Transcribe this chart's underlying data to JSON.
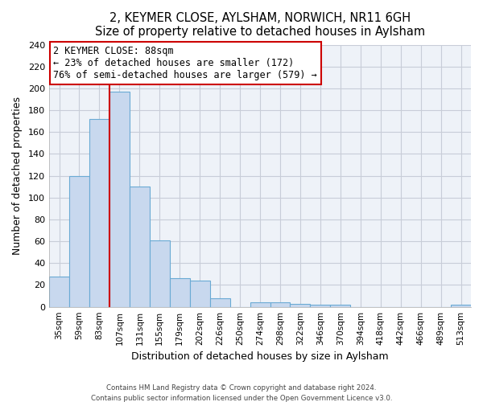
{
  "title": "2, KEYMER CLOSE, AYLSHAM, NORWICH, NR11 6GH",
  "subtitle": "Size of property relative to detached houses in Aylsham",
  "xlabel": "Distribution of detached houses by size in Aylsham",
  "ylabel": "Number of detached properties",
  "bar_color": "#c8d8ee",
  "bar_edge_color": "#6aaad4",
  "plot_bg_color": "#eef2f8",
  "categories": [
    "35sqm",
    "59sqm",
    "83sqm",
    "107sqm",
    "131sqm",
    "155sqm",
    "179sqm",
    "202sqm",
    "226sqm",
    "250sqm",
    "274sqm",
    "298sqm",
    "322sqm",
    "346sqm",
    "370sqm",
    "394sqm",
    "418sqm",
    "442sqm",
    "466sqm",
    "489sqm",
    "513sqm"
  ],
  "values": [
    28,
    120,
    172,
    197,
    110,
    61,
    26,
    24,
    8,
    0,
    4,
    4,
    3,
    2,
    2,
    0,
    0,
    0,
    0,
    0,
    2
  ],
  "ylim": [
    0,
    240
  ],
  "yticks": [
    0,
    20,
    40,
    60,
    80,
    100,
    120,
    140,
    160,
    180,
    200,
    220,
    240
  ],
  "vline_color": "#cc0000",
  "vline_position": 2.5,
  "annotation_title": "2 KEYMER CLOSE: 88sqm",
  "annotation_line1": "← 23% of detached houses are smaller (172)",
  "annotation_line2": "76% of semi-detached houses are larger (579) →",
  "annotation_box_edge": "#cc0000",
  "footer_line1": "Contains HM Land Registry data © Crown copyright and database right 2024.",
  "footer_line2": "Contains public sector information licensed under the Open Government Licence v3.0.",
  "background_color": "#ffffff",
  "grid_color": "#c8cdd8"
}
